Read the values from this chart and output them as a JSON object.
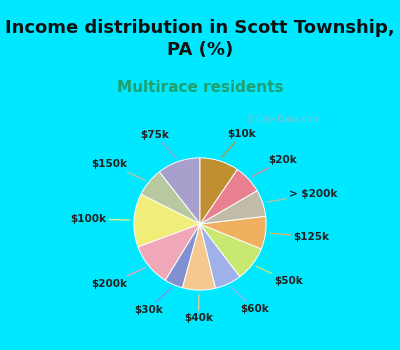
{
  "title": "Income distribution in Scott Township,\nPA (%)",
  "subtitle": "Multirace residents",
  "watermark": "ⓘ City-Data.com",
  "slices": [
    {
      "label": "$75k",
      "value": 10.5,
      "color": "#a89fcc"
    },
    {
      "label": "$150k",
      "value": 7.0,
      "color": "#b8c9a0"
    },
    {
      "label": "$100k",
      "value": 13.0,
      "color": "#f0ee78"
    },
    {
      "label": "$200k",
      "value": 10.5,
      "color": "#f0a8b8"
    },
    {
      "label": "$30k",
      "value": 4.5,
      "color": "#8090d0"
    },
    {
      "label": "$40k",
      "value": 8.0,
      "color": "#f5c890"
    },
    {
      "label": "$60k",
      "value": 6.5,
      "color": "#a0b0e8"
    },
    {
      "label": "$50k",
      "value": 8.5,
      "color": "#c8e870"
    },
    {
      "label": "$125k",
      "value": 8.0,
      "color": "#f0b060"
    },
    {
      "label": "> $200k",
      "value": 6.5,
      "color": "#c0bca8"
    },
    {
      "label": "$20k",
      "value": 7.0,
      "color": "#e88090"
    },
    {
      "label": "$10k",
      "value": 9.5,
      "color": "#c09030"
    }
  ],
  "bg_gradient_left": "#c8f0d8",
  "bg_right": "#e8f8f0",
  "title_fontsize": 13,
  "subtitle_fontsize": 11,
  "subtitle_color": "#20a070",
  "title_color": "#111111",
  "outer_bg": "#00e8ff",
  "label_fontsize": 7.5,
  "label_color": "#222222"
}
